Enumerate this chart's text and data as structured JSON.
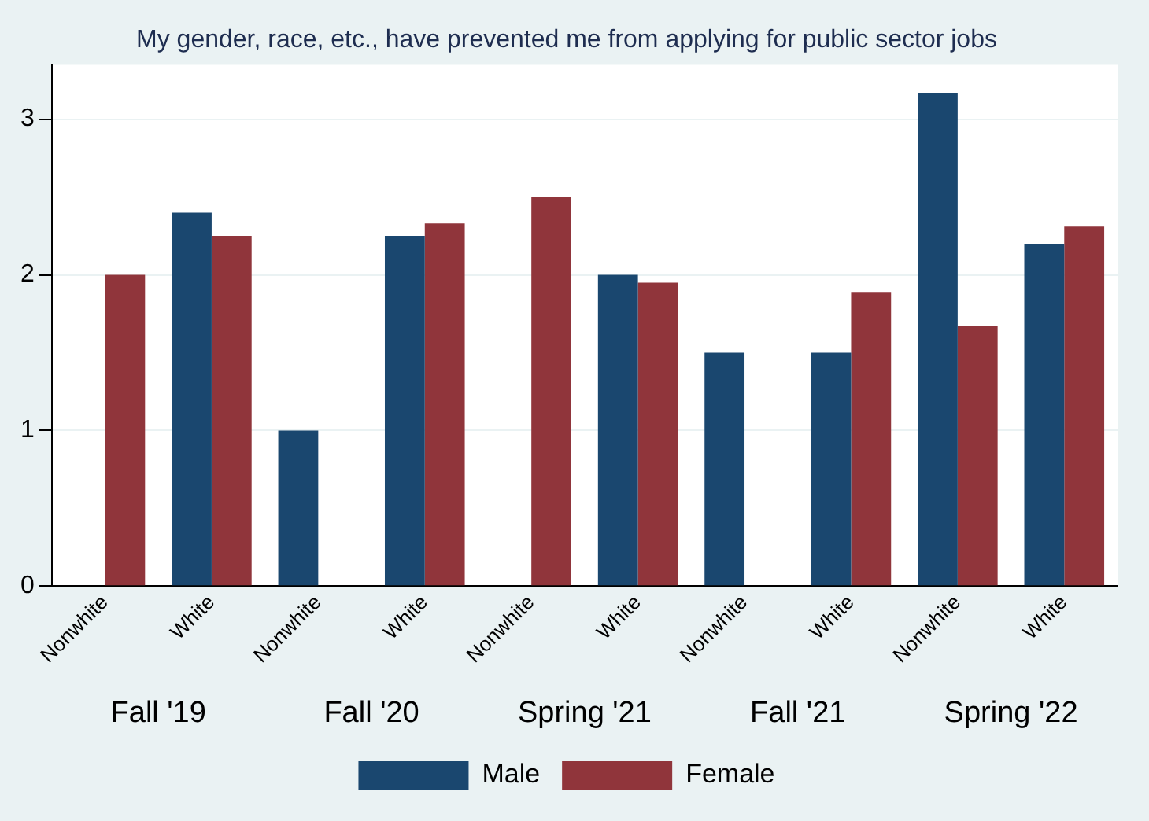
{
  "chart_data": {
    "type": "bar",
    "title": "My gender, race, etc., have prevented me from applying for public sector jobs",
    "categories": [
      "Nonwhite",
      "White",
      "Nonwhite",
      "White",
      "Nonwhite",
      "White",
      "Nonwhite",
      "White",
      "Nonwhite",
      "White"
    ],
    "series": [
      {
        "name": "Male",
        "color": "#1a476f",
        "values": [
          null,
          2.4,
          1.0,
          2.25,
          null,
          2.0,
          1.5,
          1.5,
          3.17,
          2.2
        ]
      },
      {
        "name": "Female",
        "color": "#90353b",
        "values": [
          2.0,
          2.25,
          null,
          2.33,
          2.5,
          1.95,
          null,
          1.89,
          1.67,
          2.31
        ]
      }
    ],
    "annotations": [
      "Fall '19",
      "Fall '20",
      "Spring '21",
      "Fall '21",
      "Spring '22"
    ],
    "ylim": [
      0,
      3.35
    ],
    "yticks": [
      0,
      1,
      2,
      3
    ],
    "grid": "y",
    "legend": "bottom"
  }
}
